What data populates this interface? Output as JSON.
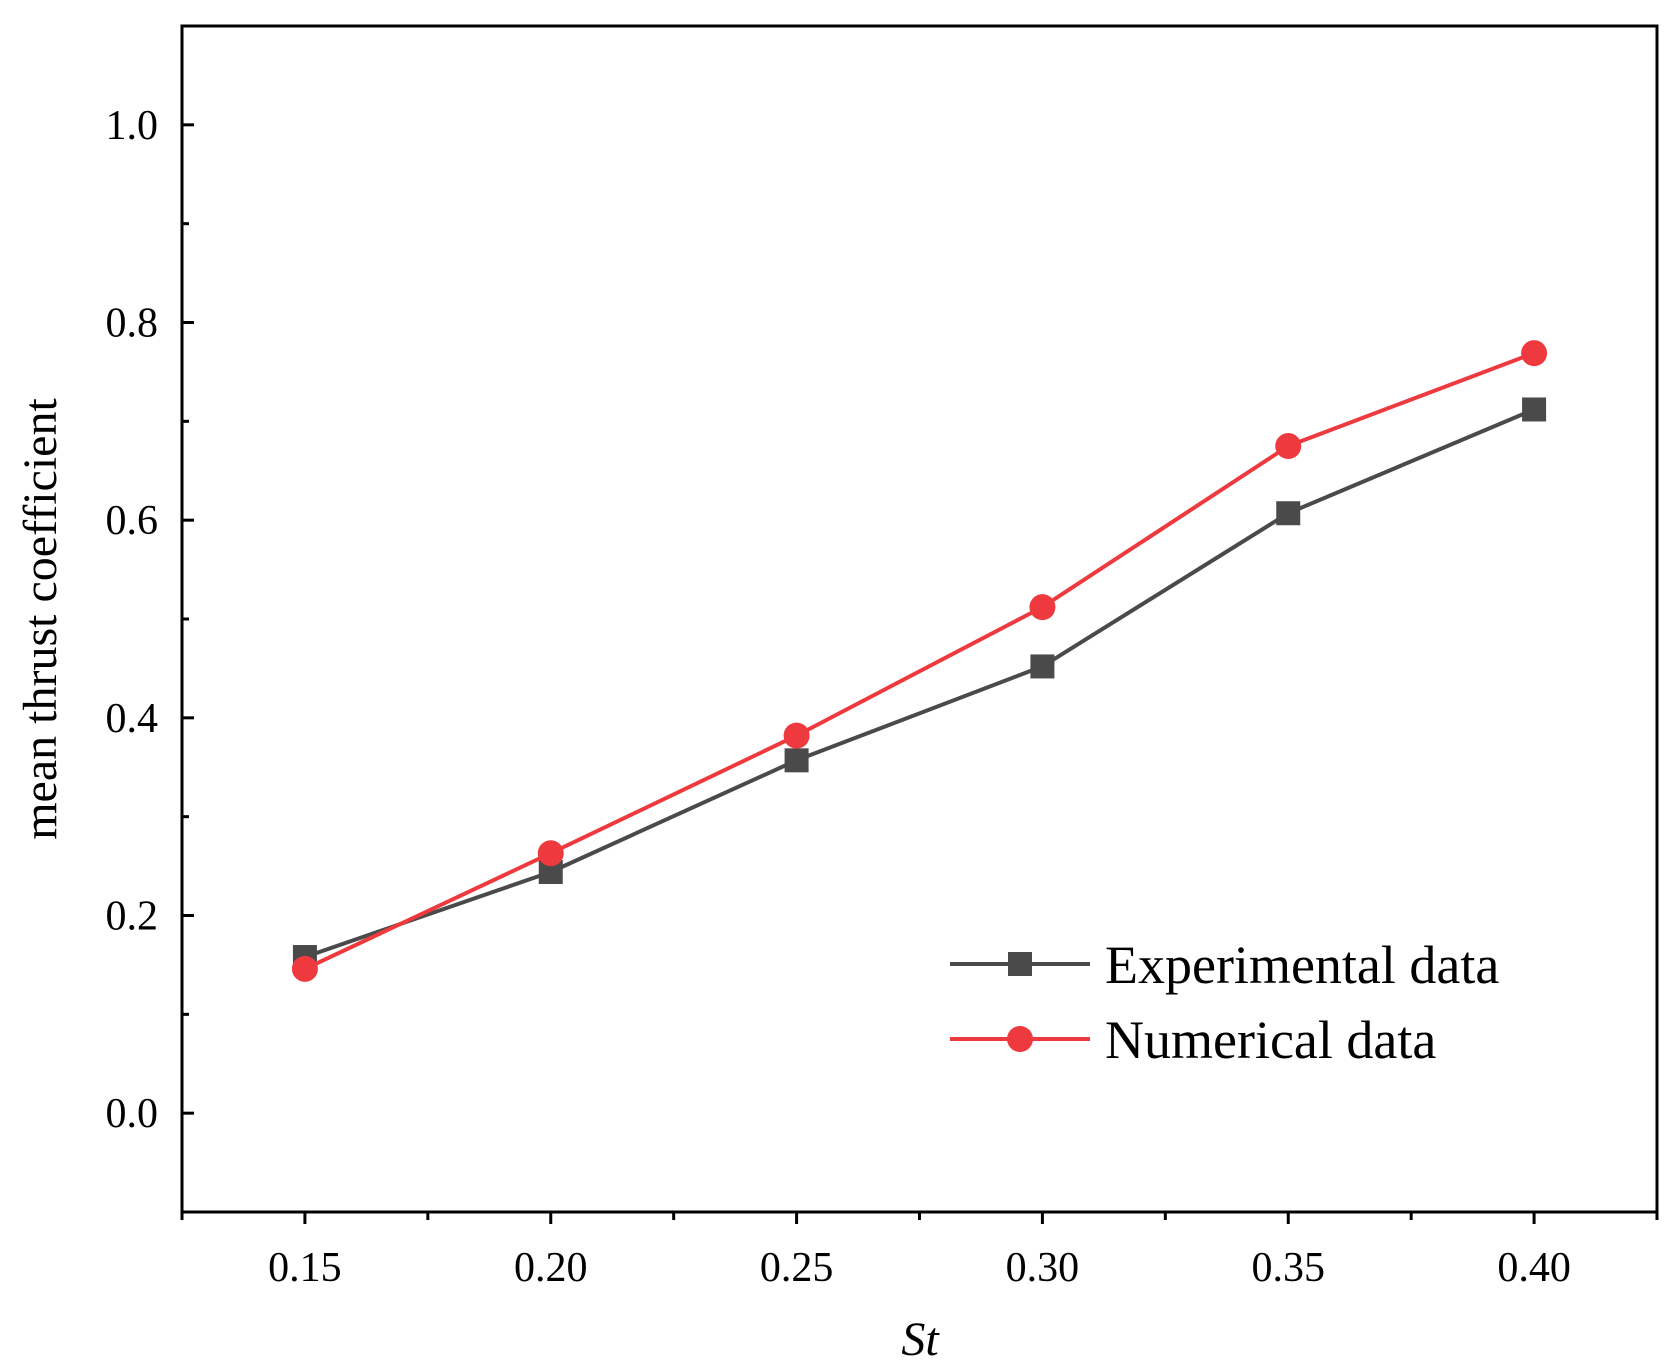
{
  "chart_data": {
    "type": "line",
    "title": "",
    "xlabel": "St",
    "ylabel": "mean thrust coefficient",
    "x": [
      0.15,
      0.2,
      0.25,
      0.3,
      0.35,
      0.4
    ],
    "x_tick_labels": [
      "0.15",
      "0.20",
      "0.25",
      "0.30",
      "0.35",
      "0.40"
    ],
    "y_tick_values": [
      0.0,
      0.2,
      0.4,
      0.6,
      0.8,
      1.0
    ],
    "y_tick_labels": [
      "0.0",
      "0.2",
      "0.4",
      "0.6",
      "0.8",
      "1.0"
    ],
    "xlim": [
      0.125,
      0.425
    ],
    "ylim": [
      -0.1,
      1.1
    ],
    "grid": false,
    "legend_position": "bottom-right",
    "series": [
      {
        "name": "Experimental data",
        "marker": "square",
        "color": "#4a4a4a",
        "values": [
          0.158,
          0.244,
          0.357,
          0.452,
          0.607,
          0.712
        ]
      },
      {
        "name": "Numerical data",
        "marker": "circle",
        "color": "#ee3a3f",
        "values": [
          0.146,
          0.263,
          0.382,
          0.512,
          0.675,
          0.769
        ]
      }
    ]
  }
}
